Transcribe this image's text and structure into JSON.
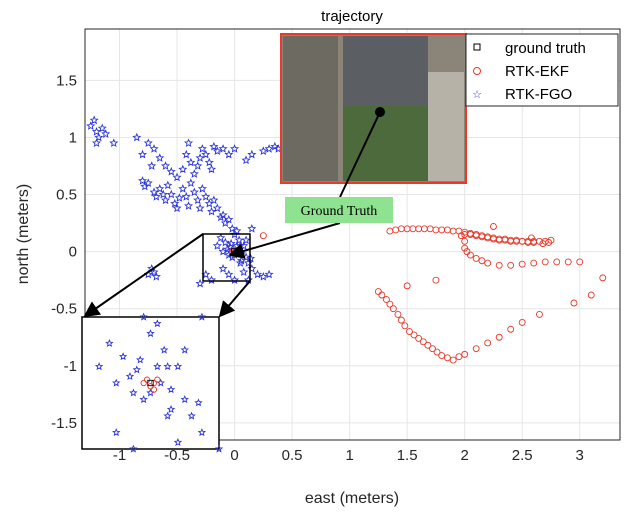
{
  "chart_data": {
    "type": "scatter",
    "title": "trajectory",
    "xlabel": "east (meters)",
    "ylabel": "north (meters)",
    "xlim": [
      -1.3,
      3.35
    ],
    "ylim": [
      -1.65,
      1.95
    ],
    "xticks": [
      -1,
      -0.5,
      0,
      0.5,
      1,
      1.5,
      2,
      2.5,
      3
    ],
    "yticks": [
      -1.5,
      -1,
      -0.5,
      0,
      0.5,
      1,
      1.5
    ],
    "grid": true,
    "legend_position": "top-right",
    "legend": [
      "ground truth",
      "RTK-EKF",
      "RTK-FGO"
    ],
    "series": [
      {
        "name": "ground truth",
        "marker": "square",
        "color": "#000000",
        "points": [
          [
            0.0,
            0.0
          ]
        ]
      },
      {
        "name": "RTK-EKF",
        "marker": "circle",
        "color": "#e8392b",
        "points": [
          [
            -0.02,
            0.0
          ],
          [
            -0.01,
            0.01
          ],
          [
            0.0,
            -0.01
          ],
          [
            0.01,
            0.0
          ],
          [
            0.02,
            0.01
          ],
          [
            0.01,
            -0.02
          ],
          [
            0.25,
            0.14
          ],
          [
            1.35,
            0.18
          ],
          [
            1.4,
            0.19
          ],
          [
            1.45,
            0.2
          ],
          [
            1.5,
            0.2
          ],
          [
            1.55,
            0.2
          ],
          [
            1.6,
            0.2
          ],
          [
            1.65,
            0.2
          ],
          [
            1.7,
            0.2
          ],
          [
            1.75,
            0.19
          ],
          [
            1.8,
            0.19
          ],
          [
            1.85,
            0.19
          ],
          [
            1.9,
            0.18
          ],
          [
            1.95,
            0.18
          ],
          [
            2.0,
            0.17
          ],
          [
            2.05,
            0.16
          ],
          [
            2.1,
            0.15
          ],
          [
            2.15,
            0.14
          ],
          [
            2.2,
            0.13
          ],
          [
            2.25,
            0.12
          ],
          [
            2.3,
            0.11
          ],
          [
            2.35,
            0.11
          ],
          [
            2.4,
            0.1
          ],
          [
            2.45,
            0.1
          ],
          [
            2.5,
            0.09
          ],
          [
            2.55,
            0.09
          ],
          [
            2.6,
            0.09
          ],
          [
            2.65,
            0.09
          ],
          [
            2.7,
            0.09
          ],
          [
            2.75,
            0.1
          ],
          [
            2.73,
            0.08
          ],
          [
            2.68,
            0.07
          ],
          [
            2.6,
            0.08
          ],
          [
            2.55,
            0.08
          ],
          [
            2.5,
            0.09
          ],
          [
            2.45,
            0.09
          ],
          [
            2.4,
            0.09
          ],
          [
            2.35,
            0.1
          ],
          [
            2.3,
            0.1
          ],
          [
            2.25,
            0.11
          ],
          [
            2.2,
            0.12
          ],
          [
            2.15,
            0.13
          ],
          [
            2.1,
            0.14
          ],
          [
            2.05,
            0.15
          ],
          [
            2.0,
            0.15
          ],
          [
            1.97,
            0.14
          ],
          [
            2.0,
            0.09
          ],
          [
            2.0,
            0.03
          ],
          [
            2.02,
            0.0
          ],
          [
            2.05,
            -0.03
          ],
          [
            2.1,
            -0.06
          ],
          [
            2.15,
            -0.08
          ],
          [
            2.2,
            -0.1
          ],
          [
            2.3,
            -0.12
          ],
          [
            2.4,
            -0.12
          ],
          [
            2.5,
            -0.11
          ],
          [
            2.6,
            -0.1
          ],
          [
            2.7,
            -0.09
          ],
          [
            2.8,
            -0.09
          ],
          [
            2.9,
            -0.09
          ],
          [
            3.0,
            -0.09
          ],
          [
            2.25,
            0.22
          ],
          [
            2.58,
            0.12
          ],
          [
            1.25,
            -0.35
          ],
          [
            1.28,
            -0.38
          ],
          [
            1.32,
            -0.42
          ],
          [
            1.35,
            -0.46
          ],
          [
            1.38,
            -0.5
          ],
          [
            1.42,
            -0.55
          ],
          [
            1.45,
            -0.6
          ],
          [
            1.48,
            -0.65
          ],
          [
            1.52,
            -0.7
          ],
          [
            1.56,
            -0.73
          ],
          [
            1.6,
            -0.76
          ],
          [
            1.64,
            -0.79
          ],
          [
            1.68,
            -0.82
          ],
          [
            1.72,
            -0.85
          ],
          [
            1.76,
            -0.88
          ],
          [
            1.8,
            -0.91
          ],
          [
            1.85,
            -0.93
          ],
          [
            1.9,
            -0.95
          ],
          [
            1.5,
            -0.3
          ],
          [
            1.75,
            -0.25
          ],
          [
            1.95,
            -0.92
          ],
          [
            2.0,
            -0.9
          ],
          [
            2.1,
            -0.85
          ],
          [
            2.2,
            -0.8
          ],
          [
            2.3,
            -0.75
          ],
          [
            2.4,
            -0.68
          ],
          [
            2.5,
            -0.62
          ],
          [
            2.65,
            -0.55
          ],
          [
            2.95,
            -0.45
          ],
          [
            3.1,
            -0.38
          ],
          [
            3.2,
            -0.23
          ]
        ]
      },
      {
        "name": "RTK-FGO",
        "marker": "star",
        "color": "#2b35d8",
        "points": [
          [
            -1.25,
            1.1
          ],
          [
            -1.22,
            1.15
          ],
          [
            -1.2,
            1.05
          ],
          [
            -1.18,
            1.0
          ],
          [
            -1.2,
            0.95
          ],
          [
            -1.15,
            1.08
          ],
          [
            -1.12,
            1.03
          ],
          [
            -1.05,
            0.95
          ],
          [
            -0.85,
            1.0
          ],
          [
            -0.8,
            0.85
          ],
          [
            -0.75,
            0.95
          ],
          [
            -0.72,
            0.75
          ],
          [
            -0.7,
            0.9
          ],
          [
            -0.65,
            0.82
          ],
          [
            -0.6,
            0.75
          ],
          [
            -0.55,
            0.7
          ],
          [
            -0.5,
            0.65
          ],
          [
            -0.45,
            0.72
          ],
          [
            -0.42,
            0.85
          ],
          [
            -0.4,
            0.95
          ],
          [
            -0.38,
            0.78
          ],
          [
            -0.35,
            0.68
          ],
          [
            -0.32,
            0.75
          ],
          [
            -0.3,
            0.82
          ],
          [
            -0.28,
            0.9
          ],
          [
            -0.25,
            0.85
          ],
          [
            -0.22,
            0.78
          ],
          [
            -0.2,
            0.72
          ],
          [
            -0.18,
            0.92
          ],
          [
            -0.15,
            0.88
          ],
          [
            -0.1,
            0.9
          ],
          [
            -0.05,
            0.85
          ],
          [
            0.0,
            0.9
          ],
          [
            0.1,
            0.8
          ],
          [
            0.15,
            0.85
          ],
          [
            0.25,
            0.88
          ],
          [
            0.3,
            0.9
          ],
          [
            0.35,
            0.92
          ],
          [
            0.38,
            0.9
          ],
          [
            -0.8,
            0.62
          ],
          [
            -0.78,
            0.57
          ],
          [
            -0.75,
            0.6
          ],
          [
            -0.7,
            0.52
          ],
          [
            -0.68,
            0.48
          ],
          [
            -0.65,
            0.55
          ],
          [
            -0.62,
            0.5
          ],
          [
            -0.6,
            0.45
          ],
          [
            -0.58,
            0.58
          ],
          [
            -0.55,
            0.5
          ],
          [
            -0.52,
            0.42
          ],
          [
            -0.5,
            0.38
          ],
          [
            -0.48,
            0.47
          ],
          [
            -0.45,
            0.55
          ],
          [
            -0.42,
            0.48
          ],
          [
            -0.4,
            0.4
          ],
          [
            -0.38,
            0.6
          ],
          [
            -0.35,
            0.52
          ],
          [
            -0.32,
            0.45
          ],
          [
            -0.3,
            0.38
          ],
          [
            -0.28,
            0.55
          ],
          [
            -0.25,
            0.48
          ],
          [
            -0.22,
            0.42
          ],
          [
            -0.2,
            0.35
          ],
          [
            -0.18,
            0.45
          ],
          [
            -0.15,
            0.38
          ],
          [
            -0.12,
            0.3
          ],
          [
            -0.1,
            0.32
          ],
          [
            -0.08,
            0.25
          ],
          [
            -0.05,
            0.28
          ],
          [
            -0.02,
            0.2
          ],
          [
            0.0,
            0.15
          ],
          [
            0.02,
            0.18
          ],
          [
            0.04,
            0.1
          ],
          [
            0.05,
            0.05
          ],
          [
            0.03,
            0.0
          ],
          [
            0.06,
            -0.02
          ],
          [
            0.08,
            0.05
          ],
          [
            0.1,
            -0.05
          ],
          [
            0.12,
            -0.1
          ],
          [
            0.15,
            -0.15
          ],
          [
            0.2,
            -0.2
          ],
          [
            0.25,
            -0.22
          ],
          [
            0.3,
            -0.2
          ],
          [
            -0.08,
            0.08
          ],
          [
            -0.05,
            -0.03
          ],
          [
            -0.1,
            0.0
          ],
          [
            -0.15,
            0.05
          ],
          [
            -0.75,
            -0.2
          ],
          [
            -0.72,
            -0.15
          ],
          [
            -0.7,
            -0.18
          ],
          [
            -0.68,
            -0.22
          ],
          [
            -0.2,
            -0.25
          ],
          [
            -0.25,
            -0.2
          ],
          [
            -0.3,
            -0.28
          ],
          [
            -0.05,
            -0.2
          ],
          [
            0.0,
            -0.25
          ],
          [
            0.1,
            0.1
          ],
          [
            0.15,
            0.2
          ],
          [
            0.05,
            -0.1
          ],
          [
            -0.02,
            -0.05
          ],
          [
            -0.04,
            0.04
          ],
          [
            0.02,
            0.05
          ],
          [
            0.06,
            -0.08
          ],
          [
            0.12,
            -0.25
          ],
          [
            0.08,
            -0.18
          ],
          [
            -0.1,
            -0.15
          ],
          [
            -0.12,
            0.12
          ],
          [
            0.14,
            -0.06
          ],
          [
            -0.06,
            0.02
          ],
          [
            0.0,
            -0.03
          ],
          [
            -0.03,
            0.07
          ]
        ]
      }
    ],
    "annotations": [
      "Ground Truth"
    ]
  }
}
